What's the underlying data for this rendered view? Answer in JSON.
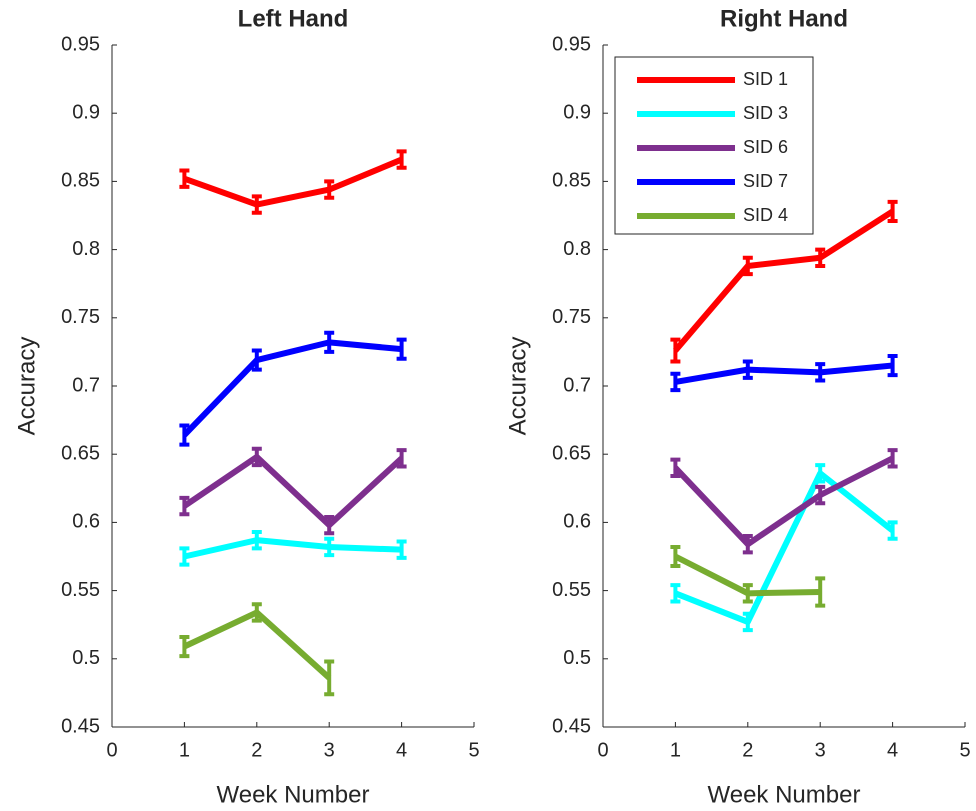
{
  "chart_data": [
    {
      "type": "line",
      "title": "Left Hand",
      "xlabel": "Week Number",
      "ylabel": "Accuracy",
      "x": [
        1,
        2,
        3,
        4
      ],
      "xlim": [
        0,
        5
      ],
      "xticks": [
        0,
        1,
        2,
        3,
        4,
        5
      ],
      "ylim": [
        0.45,
        0.95
      ],
      "yticks": [
        0.45,
        0.5,
        0.55,
        0.6,
        0.65,
        0.7,
        0.75,
        0.8,
        0.85,
        0.9,
        0.95
      ],
      "series": [
        {
          "name": "SID 1",
          "color": "#ff0000",
          "values": [
            0.852,
            0.833,
            0.844,
            0.866
          ],
          "errors": [
            0.006,
            0.006,
            0.006,
            0.006
          ]
        },
        {
          "name": "SID 3",
          "color": "#00ffff",
          "values": [
            0.575,
            0.587,
            0.582,
            0.58
          ],
          "errors": [
            0.006,
            0.006,
            0.006,
            0.006
          ]
        },
        {
          "name": "SID 6",
          "color": "#7e2f8e",
          "values": [
            0.612,
            0.648,
            0.598,
            0.647
          ],
          "errors": [
            0.006,
            0.006,
            0.006,
            0.006
          ]
        },
        {
          "name": "SID 7",
          "color": "#0000ff",
          "values": [
            0.664,
            0.719,
            0.732,
            0.727
          ],
          "errors": [
            0.007,
            0.007,
            0.007,
            0.007
          ]
        },
        {
          "name": "SID 4",
          "color": "#77ac30",
          "values": [
            0.509,
            0.534,
            0.486,
            null
          ],
          "errors": [
            0.007,
            0.006,
            0.012,
            null
          ]
        }
      ]
    },
    {
      "type": "line",
      "title": "Right Hand",
      "xlabel": "Week Number",
      "ylabel": "Accuracy",
      "x": [
        1,
        2,
        3,
        4
      ],
      "xlim": [
        0,
        5
      ],
      "xticks": [
        0,
        1,
        2,
        3,
        4,
        5
      ],
      "ylim": [
        0.45,
        0.95
      ],
      "yticks": [
        0.45,
        0.5,
        0.55,
        0.6,
        0.65,
        0.7,
        0.75,
        0.8,
        0.85,
        0.9,
        0.95
      ],
      "legend": "upper left",
      "series": [
        {
          "name": "SID 1",
          "color": "#ff0000",
          "values": [
            0.726,
            0.788,
            0.794,
            0.828
          ],
          "errors": [
            0.008,
            0.006,
            0.006,
            0.007
          ]
        },
        {
          "name": "SID 3",
          "color": "#00ffff",
          "values": [
            0.548,
            0.527,
            0.636,
            0.594
          ],
          "errors": [
            0.006,
            0.006,
            0.006,
            0.006
          ]
        },
        {
          "name": "SID 6",
          "color": "#7e2f8e",
          "values": [
            0.64,
            0.584,
            0.62,
            0.647
          ],
          "errors": [
            0.006,
            0.006,
            0.006,
            0.006
          ]
        },
        {
          "name": "SID 7",
          "color": "#0000ff",
          "values": [
            0.703,
            0.712,
            0.71,
            0.715
          ],
          "errors": [
            0.006,
            0.006,
            0.006,
            0.007
          ]
        },
        {
          "name": "SID 4",
          "color": "#77ac30",
          "values": [
            0.575,
            0.548,
            0.549,
            null
          ],
          "errors": [
            0.007,
            0.006,
            0.01,
            null
          ]
        }
      ]
    }
  ]
}
